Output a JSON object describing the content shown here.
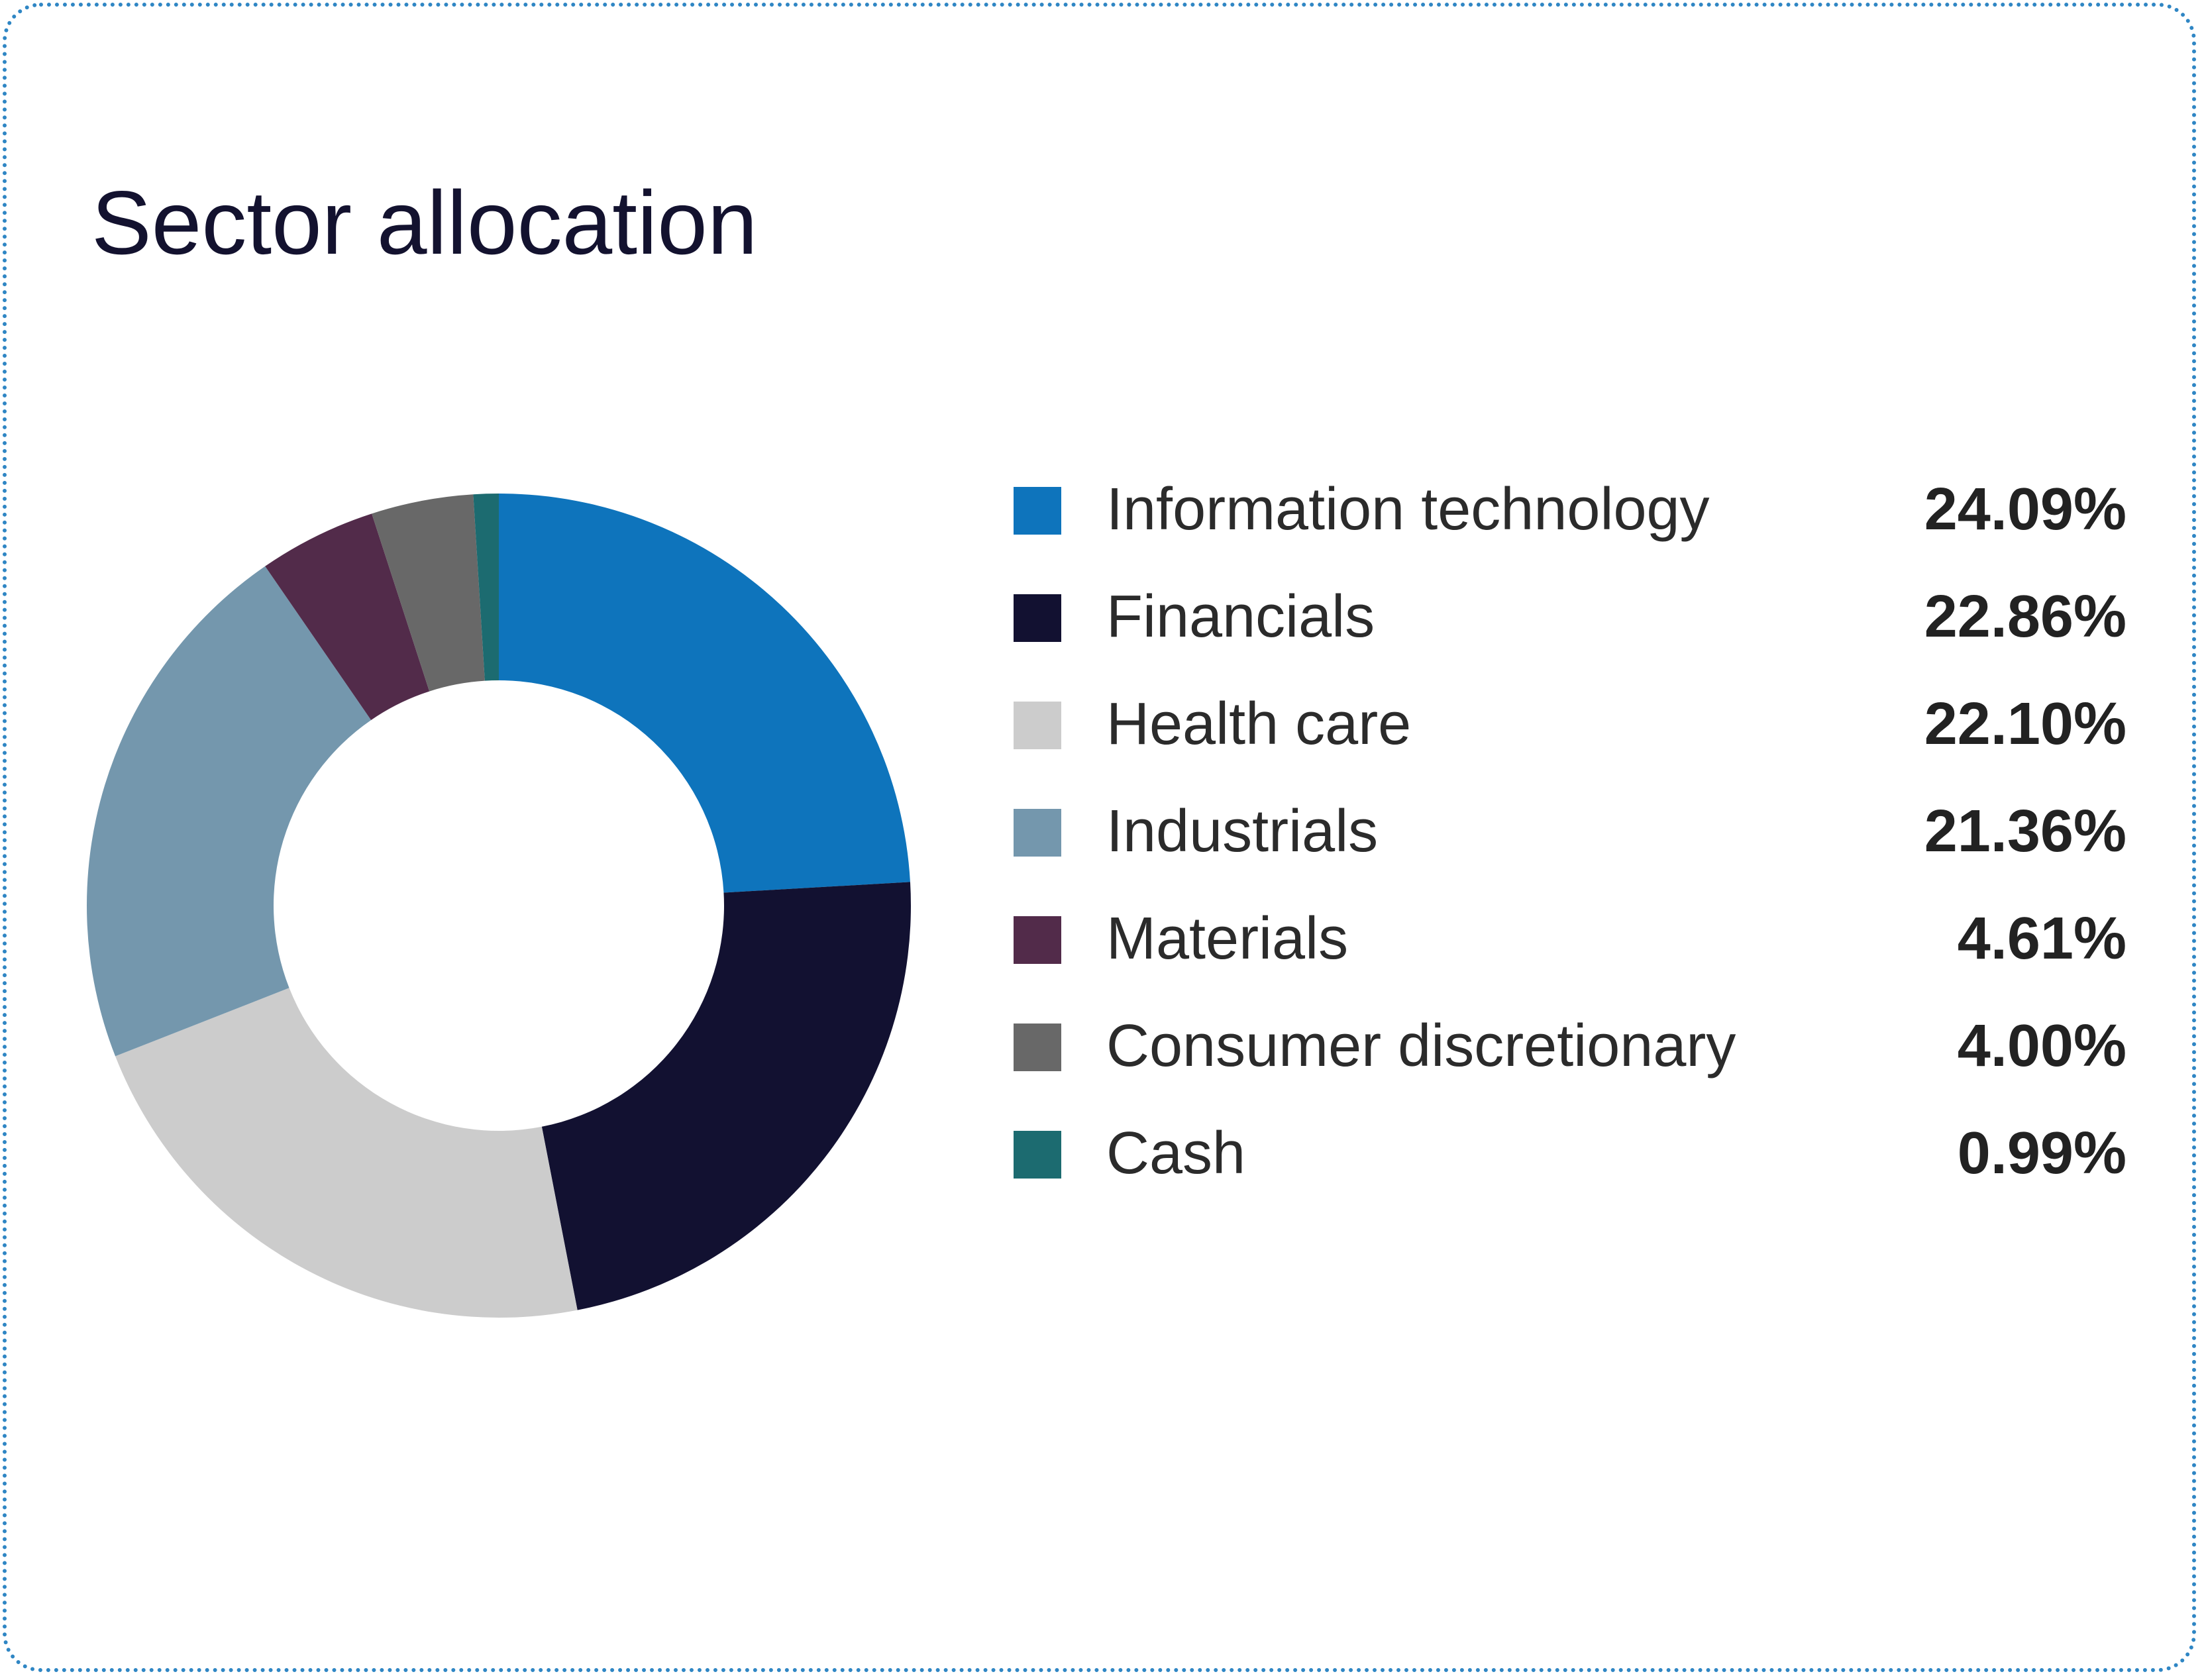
{
  "chart_data": {
    "type": "pie",
    "title": "Sector allocation",
    "donut": true,
    "legend_placement": "right",
    "slices": [
      {
        "label": "Information technology",
        "value": 24.09,
        "display": "24.09%",
        "color": "#0e74bc"
      },
      {
        "label": "Financials",
        "value": 22.86,
        "display": "22.86%",
        "color": "#121131"
      },
      {
        "label": "Health care",
        "value": 22.1,
        "display": "22.10%",
        "color": "#cccccc"
      },
      {
        "label": "Industrials",
        "value": 21.36,
        "display": "21.36%",
        "color": "#7497ad"
      },
      {
        "label": "Materials",
        "value": 4.61,
        "display": "4.61%",
        "color": "#522b4a"
      },
      {
        "label": "Consumer discretionary",
        "value": 4.0,
        "display": "4.00%",
        "color": "#686868"
      },
      {
        "label": "Cash",
        "value": 0.99,
        "display": "0.99%",
        "color": "#1c6b70"
      }
    ]
  },
  "border_color": "#2f86c4"
}
